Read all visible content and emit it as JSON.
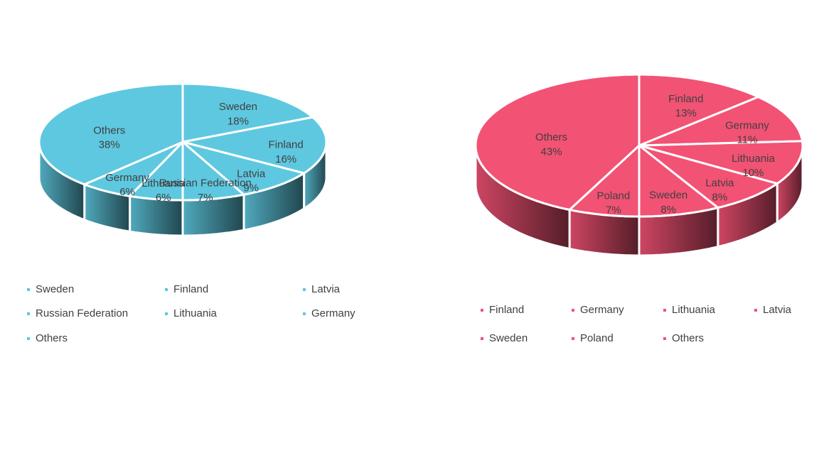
{
  "chart_data": [
    {
      "type": "pie3d",
      "color": "#5ec8e0",
      "categories": [
        "Sweden",
        "Finland",
        "Latvia",
        "Russian Federation",
        "Lithuania",
        "Germany",
        "Others"
      ],
      "values": [
        18,
        16,
        9,
        7,
        6,
        6,
        38
      ],
      "value_labels": [
        "18%",
        "16%",
        "9%",
        "7%",
        "6%",
        "6%",
        "38%"
      ]
    },
    {
      "type": "pie3d",
      "color": "#f25274",
      "categories": [
        "Finland",
        "Germany",
        "Lithuania",
        "Latvia",
        "Sweden",
        "Poland",
        "Others"
      ],
      "values": [
        13,
        11,
        10,
        8,
        8,
        7,
        43
      ],
      "value_labels": [
        "13%",
        "11%",
        "10%",
        "8%",
        "8%",
        "7%",
        "43%"
      ]
    }
  ]
}
